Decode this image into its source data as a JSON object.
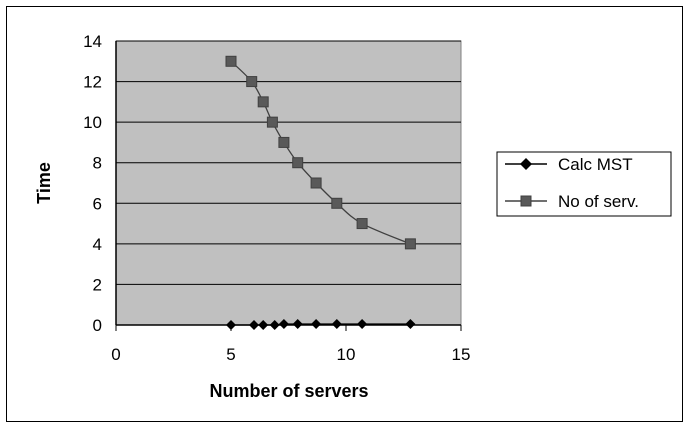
{
  "chart_data": {
    "type": "scatter",
    "title": "",
    "xlabel": "Number of servers",
    "ylabel": "Time",
    "xlim": [
      0,
      15
    ],
    "ylim": [
      0,
      14
    ],
    "x_ticks": [
      "0",
      "5",
      "10",
      "15"
    ],
    "y_ticks": [
      "0",
      "2",
      "4",
      "6",
      "8",
      "10",
      "12",
      "14"
    ],
    "grid": true,
    "plot_background": "#c0c0c0",
    "legend_position": "right",
    "series": [
      {
        "name": "Calc MST",
        "marker": "diamond",
        "color": "#000000",
        "x": [
          5,
          6,
          6.4,
          6.9,
          7.3,
          7.9,
          8.7,
          9.6,
          10.7,
          12.8
        ],
        "y": [
          0,
          0,
          0,
          0,
          0.05,
          0.05,
          0.05,
          0.05,
          0.05,
          0.05
        ]
      },
      {
        "name": "No of serv.",
        "marker": "square",
        "color": "#404040",
        "x": [
          5,
          5.9,
          6.4,
          6.8,
          7.3,
          7.9,
          8.7,
          9.6,
          10.7,
          12.8
        ],
        "y": [
          13,
          12,
          11,
          10,
          9,
          8,
          7,
          6,
          5,
          4
        ]
      }
    ]
  }
}
